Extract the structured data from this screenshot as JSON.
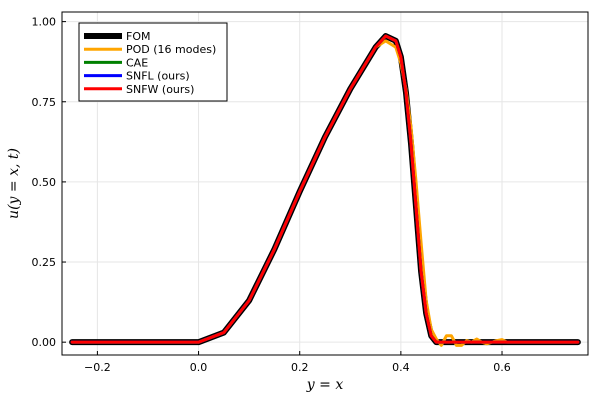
{
  "chart_data": {
    "type": "line",
    "xlabel": "y = x",
    "ylabel": "u(y = x, t)",
    "xlim": [
      -0.27,
      0.77
    ],
    "ylim": [
      -0.04,
      1.03
    ],
    "xticks": [
      -0.2,
      0.0,
      0.2,
      0.4,
      0.6
    ],
    "xtick_labels": [
      "−0.2",
      "0.0",
      "0.2",
      "0.4",
      "0.6"
    ],
    "yticks": [
      0.0,
      0.25,
      0.5,
      0.75,
      1.0
    ],
    "ytick_labels": [
      "0.00",
      "0.25",
      "0.50",
      "0.75",
      "1.00"
    ],
    "grid": true,
    "legend_position": "top-left",
    "series": [
      {
        "name": "FOM",
        "color": "#000000",
        "x": [
          -0.25,
          0.0,
          0.05,
          0.1,
          0.15,
          0.2,
          0.25,
          0.3,
          0.35,
          0.37,
          0.39,
          0.4,
          0.41,
          0.42,
          0.43,
          0.44,
          0.45,
          0.46,
          0.47,
          0.5,
          0.75
        ],
        "y": [
          0,
          0,
          0.03,
          0.13,
          0.29,
          0.47,
          0.64,
          0.79,
          0.92,
          0.955,
          0.94,
          0.89,
          0.78,
          0.62,
          0.42,
          0.22,
          0.09,
          0.02,
          0,
          0,
          0
        ]
      },
      {
        "name": "POD (16 modes)",
        "color": "#FFA500",
        "x": [
          -0.25,
          0.0,
          0.05,
          0.1,
          0.15,
          0.2,
          0.25,
          0.3,
          0.35,
          0.37,
          0.39,
          0.4,
          0.41,
          0.42,
          0.43,
          0.44,
          0.45,
          0.46,
          0.47,
          0.48,
          0.49,
          0.5,
          0.51,
          0.52,
          0.53,
          0.54,
          0.55,
          0.56,
          0.57,
          0.58,
          0.59,
          0.6,
          0.61,
          0.62,
          0.75
        ],
        "y": [
          0,
          0,
          0.03,
          0.13,
          0.29,
          0.47,
          0.64,
          0.79,
          0.92,
          0.94,
          0.92,
          0.87,
          0.79,
          0.67,
          0.5,
          0.31,
          0.13,
          0.04,
          0.01,
          -0.01,
          0.02,
          0.02,
          -0.01,
          -0.01,
          0.005,
          0.0,
          0.01,
          0.0,
          -0.005,
          0.0,
          0.005,
          0.008,
          0.0,
          0.0,
          0
        ]
      },
      {
        "name": "CAE",
        "color": "#008000",
        "x": [
          -0.25,
          0.0,
          0.05,
          0.1,
          0.15,
          0.2,
          0.25,
          0.3,
          0.35,
          0.37,
          0.39,
          0.4,
          0.41,
          0.42,
          0.43,
          0.44,
          0.45,
          0.46,
          0.47,
          0.5,
          0.75
        ],
        "y": [
          0,
          0,
          0.03,
          0.13,
          0.29,
          0.47,
          0.64,
          0.79,
          0.92,
          0.955,
          0.94,
          0.89,
          0.78,
          0.62,
          0.42,
          0.22,
          0.09,
          0.02,
          0,
          0,
          0
        ]
      },
      {
        "name": "SNFL (ours)",
        "color": "#0000FF",
        "x": [
          -0.25,
          0.0,
          0.05,
          0.1,
          0.15,
          0.2,
          0.25,
          0.3,
          0.35,
          0.37,
          0.39,
          0.4,
          0.41,
          0.42,
          0.43,
          0.44,
          0.45,
          0.46,
          0.47,
          0.5,
          0.75
        ],
        "y": [
          0,
          0,
          0.03,
          0.13,
          0.29,
          0.47,
          0.64,
          0.79,
          0.92,
          0.955,
          0.94,
          0.89,
          0.78,
          0.62,
          0.42,
          0.22,
          0.09,
          0.02,
          0,
          0,
          0
        ]
      },
      {
        "name": "SNFW (ours)",
        "color": "#FF0000",
        "x": [
          -0.25,
          0.0,
          0.05,
          0.1,
          0.15,
          0.2,
          0.25,
          0.3,
          0.35,
          0.37,
          0.39,
          0.4,
          0.41,
          0.42,
          0.43,
          0.44,
          0.45,
          0.46,
          0.47,
          0.5,
          0.75
        ],
        "y": [
          0,
          0,
          0.03,
          0.13,
          0.29,
          0.47,
          0.64,
          0.79,
          0.92,
          0.955,
          0.94,
          0.89,
          0.78,
          0.62,
          0.42,
          0.22,
          0.09,
          0.02,
          0,
          0,
          0
        ]
      }
    ]
  }
}
